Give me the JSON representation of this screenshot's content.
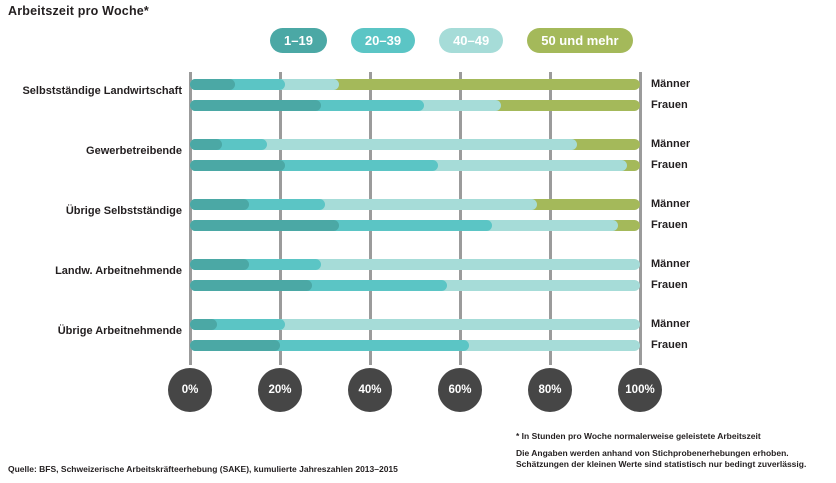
{
  "title": "Arbeitszeit pro Woche*",
  "legend": [
    {
      "label": "1–19",
      "color": "#4ba8a5"
    },
    {
      "label": "20–39",
      "color": "#5bc5c5"
    },
    {
      "label": "40–49",
      "color": "#a6dcd8"
    },
    {
      "label": "50 und mehr",
      "color": "#a4b95a"
    }
  ],
  "axis": {
    "ticks": [
      "0%",
      "20%",
      "40%",
      "60%",
      "80%",
      "100%"
    ],
    "circle_color": "#464646",
    "gridline_color": "#9b9b9b"
  },
  "chart_data": {
    "type": "bar",
    "stacked": true,
    "orientation": "horizontal",
    "unit": "%",
    "xlim": [
      0,
      100
    ],
    "grid": "vertical",
    "legend_position": "top",
    "series_labels": [
      "1–19",
      "20–39",
      "40–49",
      "50 und mehr"
    ],
    "groups": [
      {
        "category": "Selbstständige Landwirtschaft",
        "bars": [
          {
            "label": "Männer",
            "values": [
              10,
              11,
              12,
              67
            ]
          },
          {
            "label": "Frauen",
            "values": [
              29,
              23,
              17,
              31
            ]
          }
        ]
      },
      {
        "category": "Gewerbetreibende",
        "bars": [
          {
            "label": "Männer",
            "values": [
              7,
              10,
              69,
              14
            ]
          },
          {
            "label": "Frauen",
            "values": [
              21,
              34,
              42,
              3
            ]
          }
        ]
      },
      {
        "category": "Übrige Selbstständige",
        "bars": [
          {
            "label": "Männer",
            "values": [
              13,
              17,
              47,
              23
            ]
          },
          {
            "label": "Frauen",
            "values": [
              33,
              34,
              28,
              5
            ]
          }
        ]
      },
      {
        "category": "Landw. Arbeitnehmende",
        "bars": [
          {
            "label": "Männer",
            "values": [
              13,
              16,
              71,
              0
            ]
          },
          {
            "label": "Frauen",
            "values": [
              27,
              30,
              43,
              0
            ]
          }
        ]
      },
      {
        "category": "Übrige Arbeitnehmende",
        "bars": [
          {
            "label": "Männer",
            "values": [
              6,
              15,
              79,
              0
            ]
          },
          {
            "label": "Frauen",
            "values": [
              20,
              42,
              38,
              0
            ]
          }
        ]
      }
    ]
  },
  "footnote": {
    "line1": "* In Stunden pro Woche normalerweise geleistete Arbeitszeit",
    "line2": "Die Angaben werden anhand von Stichprobenerhebungen erhoben. Schätzungen der kleinen Werte sind statistisch nur bedingt zuverlässig."
  },
  "source": "Quelle: BFS, Schweizerische Arbeitskräfteerhebung (SAKE), kumulierte Jahreszahlen 2013–2015",
  "text_color": "#231f20"
}
